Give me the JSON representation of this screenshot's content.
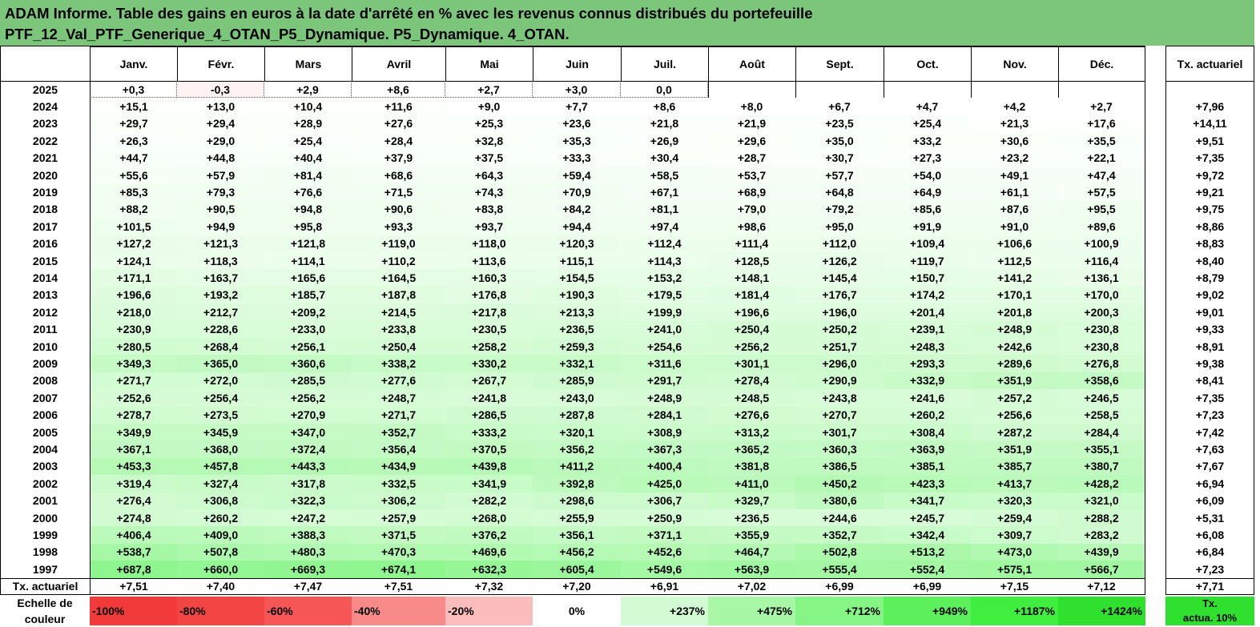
{
  "header": {
    "line1": "ADAM Informe. Table des gains en euros à la date d'arrêté en % avec les revenus connus distribués du portefeuille",
    "line2": "PTF_12_Val_PTF_Generique_4_OTAN_P5_Dynamique. P5_Dynamique. 4_OTAN."
  },
  "chart_data": {
    "type": "heatmap",
    "columns": [
      "Janv.",
      "Févr.",
      "Mars",
      "Avril",
      "Mai",
      "Juin",
      "Juil.",
      "Août",
      "Sept.",
      "Oct.",
      "Nov.",
      "Déc."
    ],
    "summary_column_label": "Tx. actuariel",
    "rows": [
      {
        "year": "2025",
        "values": [
          "+0,3",
          "-0,3",
          "+2,9",
          "+8,6",
          "+2,7",
          "+3,0",
          "0,0",
          "",
          "",
          "",
          "",
          ""
        ],
        "tx": ""
      },
      {
        "year": "2024",
        "values": [
          "+15,1",
          "+13,0",
          "+10,4",
          "+11,6",
          "+9,0",
          "+7,7",
          "+8,6",
          "+8,0",
          "+6,7",
          "+4,7",
          "+4,2",
          "+2,7"
        ],
        "tx": "+7,96"
      },
      {
        "year": "2023",
        "values": [
          "+29,7",
          "+29,4",
          "+28,9",
          "+27,6",
          "+25,3",
          "+23,6",
          "+21,8",
          "+21,9",
          "+23,5",
          "+25,4",
          "+21,3",
          "+17,6"
        ],
        "tx": "+14,11"
      },
      {
        "year": "2022",
        "values": [
          "+26,3",
          "+29,0",
          "+25,4",
          "+28,4",
          "+32,8",
          "+35,3",
          "+26,9",
          "+29,6",
          "+35,0",
          "+33,2",
          "+30,6",
          "+35,5"
        ],
        "tx": "+9,51"
      },
      {
        "year": "2021",
        "values": [
          "+44,7",
          "+44,8",
          "+40,4",
          "+37,9",
          "+37,5",
          "+33,3",
          "+30,4",
          "+28,7",
          "+30,7",
          "+27,3",
          "+23,2",
          "+22,1"
        ],
        "tx": "+7,35"
      },
      {
        "year": "2020",
        "values": [
          "+55,6",
          "+57,9",
          "+81,4",
          "+68,6",
          "+64,3",
          "+59,4",
          "+58,5",
          "+53,7",
          "+57,7",
          "+54,0",
          "+49,1",
          "+47,4"
        ],
        "tx": "+9,72"
      },
      {
        "year": "2019",
        "values": [
          "+85,3",
          "+79,3",
          "+76,6",
          "+71,5",
          "+74,3",
          "+70,9",
          "+67,1",
          "+68,9",
          "+64,8",
          "+64,9",
          "+61,1",
          "+57,5"
        ],
        "tx": "+9,21"
      },
      {
        "year": "2018",
        "values": [
          "+88,2",
          "+90,5",
          "+94,8",
          "+90,6",
          "+83,8",
          "+84,2",
          "+81,1",
          "+79,0",
          "+79,2",
          "+85,6",
          "+87,6",
          "+95,5"
        ],
        "tx": "+9,75"
      },
      {
        "year": "2017",
        "values": [
          "+101,5",
          "+94,9",
          "+95,8",
          "+93,3",
          "+93,7",
          "+94,4",
          "+97,4",
          "+98,6",
          "+95,0",
          "+91,9",
          "+91,0",
          "+89,6"
        ],
        "tx": "+8,86"
      },
      {
        "year": "2016",
        "values": [
          "+127,2",
          "+121,3",
          "+121,8",
          "+119,0",
          "+118,0",
          "+120,3",
          "+112,4",
          "+111,4",
          "+112,0",
          "+109,4",
          "+106,6",
          "+100,9"
        ],
        "tx": "+8,83"
      },
      {
        "year": "2015",
        "values": [
          "+124,1",
          "+118,3",
          "+114,1",
          "+110,2",
          "+113,6",
          "+115,1",
          "+114,3",
          "+128,5",
          "+126,2",
          "+119,7",
          "+112,5",
          "+116,4"
        ],
        "tx": "+8,40"
      },
      {
        "year": "2014",
        "values": [
          "+171,1",
          "+163,7",
          "+165,6",
          "+164,5",
          "+160,3",
          "+154,5",
          "+153,2",
          "+148,1",
          "+145,4",
          "+150,7",
          "+141,2",
          "+136,1"
        ],
        "tx": "+8,79"
      },
      {
        "year": "2013",
        "values": [
          "+196,6",
          "+193,2",
          "+185,7",
          "+187,8",
          "+176,8",
          "+190,3",
          "+179,5",
          "+181,4",
          "+176,7",
          "+174,2",
          "+170,1",
          "+170,0"
        ],
        "tx": "+9,02"
      },
      {
        "year": "2012",
        "values": [
          "+218,0",
          "+212,7",
          "+209,2",
          "+214,5",
          "+217,8",
          "+213,3",
          "+199,9",
          "+196,6",
          "+196,0",
          "+201,4",
          "+201,8",
          "+200,3"
        ],
        "tx": "+9,01"
      },
      {
        "year": "2011",
        "values": [
          "+230,9",
          "+228,6",
          "+233,0",
          "+233,8",
          "+230,5",
          "+236,5",
          "+241,0",
          "+250,4",
          "+250,2",
          "+239,1",
          "+248,9",
          "+230,8"
        ],
        "tx": "+9,33"
      },
      {
        "year": "2010",
        "values": [
          "+280,5",
          "+268,4",
          "+256,1",
          "+250,4",
          "+258,2",
          "+259,3",
          "+254,6",
          "+256,2",
          "+251,7",
          "+248,3",
          "+242,6",
          "+230,8"
        ],
        "tx": "+8,91"
      },
      {
        "year": "2009",
        "values": [
          "+349,3",
          "+365,0",
          "+360,6",
          "+338,2",
          "+330,2",
          "+332,1",
          "+311,6",
          "+301,1",
          "+296,0",
          "+293,3",
          "+289,6",
          "+276,8"
        ],
        "tx": "+9,38"
      },
      {
        "year": "2008",
        "values": [
          "+271,7",
          "+272,0",
          "+285,5",
          "+277,6",
          "+267,7",
          "+285,9",
          "+291,7",
          "+278,4",
          "+290,9",
          "+332,9",
          "+351,9",
          "+358,6"
        ],
        "tx": "+8,41"
      },
      {
        "year": "2007",
        "values": [
          "+252,6",
          "+256,4",
          "+256,2",
          "+248,7",
          "+241,8",
          "+243,0",
          "+248,9",
          "+248,5",
          "+243,8",
          "+241,6",
          "+257,2",
          "+246,5"
        ],
        "tx": "+7,35"
      },
      {
        "year": "2006",
        "values": [
          "+278,7",
          "+273,5",
          "+270,9",
          "+271,7",
          "+286,5",
          "+287,8",
          "+284,1",
          "+276,6",
          "+270,7",
          "+260,2",
          "+256,6",
          "+258,5"
        ],
        "tx": "+7,23"
      },
      {
        "year": "2005",
        "values": [
          "+349,9",
          "+345,9",
          "+347,0",
          "+352,7",
          "+333,2",
          "+320,1",
          "+308,9",
          "+313,2",
          "+301,7",
          "+308,4",
          "+287,2",
          "+284,4"
        ],
        "tx": "+7,42"
      },
      {
        "year": "2004",
        "values": [
          "+367,1",
          "+368,0",
          "+372,4",
          "+356,4",
          "+370,5",
          "+356,2",
          "+367,3",
          "+365,2",
          "+360,3",
          "+363,9",
          "+351,9",
          "+355,1"
        ],
        "tx": "+7,63"
      },
      {
        "year": "2003",
        "values": [
          "+453,3",
          "+457,8",
          "+443,3",
          "+434,9",
          "+439,8",
          "+411,2",
          "+400,4",
          "+381,8",
          "+386,5",
          "+385,1",
          "+385,7",
          "+380,7"
        ],
        "tx": "+7,67"
      },
      {
        "year": "2002",
        "values": [
          "+319,4",
          "+327,4",
          "+317,8",
          "+332,5",
          "+341,9",
          "+392,8",
          "+425,0",
          "+411,0",
          "+450,2",
          "+423,3",
          "+413,7",
          "+428,2"
        ],
        "tx": "+6,94"
      },
      {
        "year": "2001",
        "values": [
          "+276,4",
          "+306,8",
          "+322,3",
          "+306,2",
          "+282,2",
          "+298,6",
          "+306,7",
          "+329,7",
          "+380,6",
          "+341,7",
          "+320,3",
          "+321,0"
        ],
        "tx": "+6,09"
      },
      {
        "year": "2000",
        "values": [
          "+274,8",
          "+260,2",
          "+247,2",
          "+257,9",
          "+268,0",
          "+255,9",
          "+250,9",
          "+236,5",
          "+244,6",
          "+245,7",
          "+259,4",
          "+288,2"
        ],
        "tx": "+5,31"
      },
      {
        "year": "1999",
        "values": [
          "+406,4",
          "+409,0",
          "+388,3",
          "+371,5",
          "+376,2",
          "+356,1",
          "+371,1",
          "+355,9",
          "+352,7",
          "+342,4",
          "+309,7",
          "+283,2"
        ],
        "tx": "+6,08"
      },
      {
        "year": "1998",
        "values": [
          "+538,7",
          "+507,8",
          "+480,3",
          "+470,3",
          "+469,6",
          "+456,2",
          "+452,6",
          "+464,7",
          "+502,8",
          "+513,2",
          "+473,0",
          "+439,9"
        ],
        "tx": "+6,84"
      },
      {
        "year": "1997",
        "values": [
          "+687,8",
          "+660,0",
          "+669,3",
          "+674,1",
          "+632,3",
          "+605,4",
          "+549,6",
          "+563,9",
          "+555,4",
          "+552,4",
          "+575,1",
          "+566,7"
        ],
        "tx": "+7,23"
      }
    ],
    "footer_row": {
      "label": "Tx. actuariel",
      "values": [
        "+7,51",
        "+7,40",
        "+7,47",
        "+7,51",
        "+7,32",
        "+7,20",
        "+6,91",
        "+7,02",
        "+6,99",
        "+6,99",
        "+7,15",
        "+7,12"
      ],
      "tx": "+7,71"
    },
    "legend": {
      "label_line1": "Echelle de",
      "label_line2": "couleur",
      "steps": [
        {
          "text": "-100%",
          "color": "#f23a3a"
        },
        {
          "text": "-80%",
          "color": "#f44545"
        },
        {
          "text": "-60%",
          "color": "#f65656"
        },
        {
          "text": "-40%",
          "color": "#f88a8a"
        },
        {
          "text": "-20%",
          "color": "#fbbcbc"
        },
        {
          "text": "0%",
          "color": "#ffffff"
        },
        {
          "text": "+237%",
          "color": "#d3fbd3"
        },
        {
          "text": "+475%",
          "color": "#a7f7a7"
        },
        {
          "text": "+712%",
          "color": "#85f585"
        },
        {
          "text": "+949%",
          "color": "#5df05d"
        },
        {
          "text": "+1187%",
          "color": "#40ee40"
        },
        {
          "text": "+1424%",
          "color": "#2fe02f"
        }
      ],
      "tx_line1": "Tx.",
      "tx_line2": "actua. 10%",
      "tx_color": "#2fe02f"
    }
  },
  "colors": {
    "header_bg": "#7bc67b"
  }
}
